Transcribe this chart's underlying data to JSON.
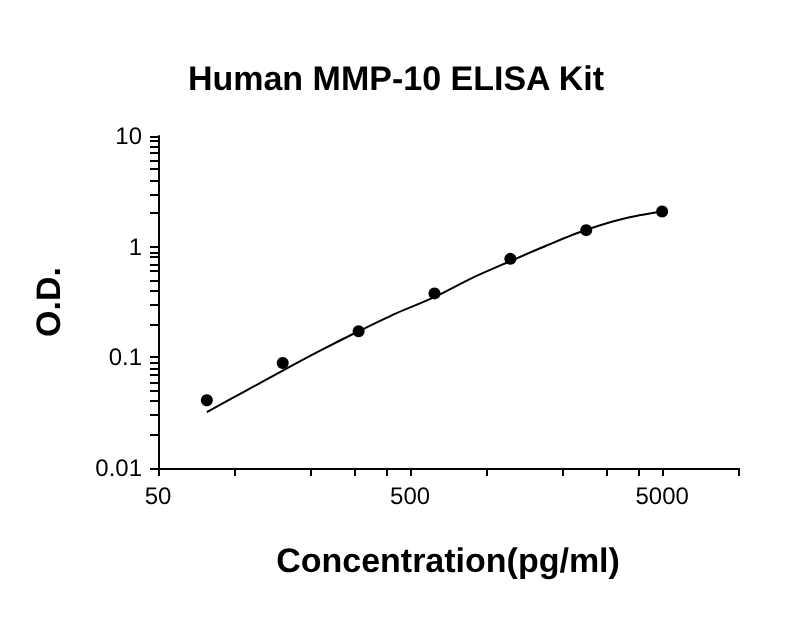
{
  "chart_data": {
    "type": "scatter",
    "title": "Human MMP-10 ELISA Kit",
    "xlabel": "Concentration(pg/ml)",
    "ylabel": "O.D.",
    "log": "xy",
    "marker": "circle",
    "grid": false,
    "xlim": [
      50,
      10000
    ],
    "ylim": [
      0.01,
      10
    ],
    "xticks": [
      50,
      {
        "value": 100,
        "label": null
      },
      {
        "value": 200,
        "label": null
      },
      {
        "value": 300,
        "label": null
      },
      {
        "value": 400,
        "label": null
      },
      500,
      {
        "value": 1000,
        "label": null
      },
      {
        "value": 2000,
        "label": null
      },
      {
        "value": 3000,
        "label": null
      },
      {
        "value": 4000,
        "label": null
      },
      5000,
      {
        "value": 10000,
        "label": null
      }
    ],
    "yticks": [
      0.01,
      {
        "value": 0.02,
        "label": null
      },
      {
        "value": 0.03,
        "label": null
      },
      {
        "value": 0.04,
        "label": null
      },
      {
        "value": 0.05,
        "label": null
      },
      {
        "value": 0.06,
        "label": null
      },
      {
        "value": 0.07,
        "label": null
      },
      {
        "value": 0.08,
        "label": null
      },
      {
        "value": 0.09,
        "label": null
      },
      0.1,
      {
        "value": 0.2,
        "label": null
      },
      {
        "value": 0.3,
        "label": null
      },
      {
        "value": 0.4,
        "label": null
      },
      {
        "value": 0.5,
        "label": null
      },
      {
        "value": 0.6,
        "label": null
      },
      {
        "value": 0.7,
        "label": null
      },
      {
        "value": 0.8,
        "label": null
      },
      {
        "value": 0.9,
        "label": null
      },
      1,
      {
        "value": 2,
        "label": null
      },
      {
        "value": 3,
        "label": null
      },
      {
        "value": 4,
        "label": null
      },
      {
        "value": 5,
        "label": null
      },
      {
        "value": 6,
        "label": null
      },
      {
        "value": 7,
        "label": null
      },
      {
        "value": 8,
        "label": null
      },
      {
        "value": 9,
        "label": null
      },
      10
    ],
    "series": [
      {
        "color": "#000000",
        "x": [
          78.125,
          156.25,
          312.5,
          625,
          1250,
          2500,
          5000
        ],
        "values": [
          0.041,
          0.089,
          0.172,
          0.378,
          0.776,
          1.41,
          2.08
        ]
      },
      {
        "type": "line",
        "color": "#000000",
        "marker": "none",
        "line_style": "solid",
        "x": [
          78.125,
          110,
          156.25,
          220,
          312.5,
          440,
          625,
          880,
          1250,
          1770,
          2500,
          3540,
          5000
        ],
        "values": [
          0.032,
          0.049,
          0.076,
          0.115,
          0.172,
          0.25,
          0.35,
          0.52,
          0.74,
          1.04,
          1.42,
          1.8,
          2.08
        ]
      }
    ]
  }
}
